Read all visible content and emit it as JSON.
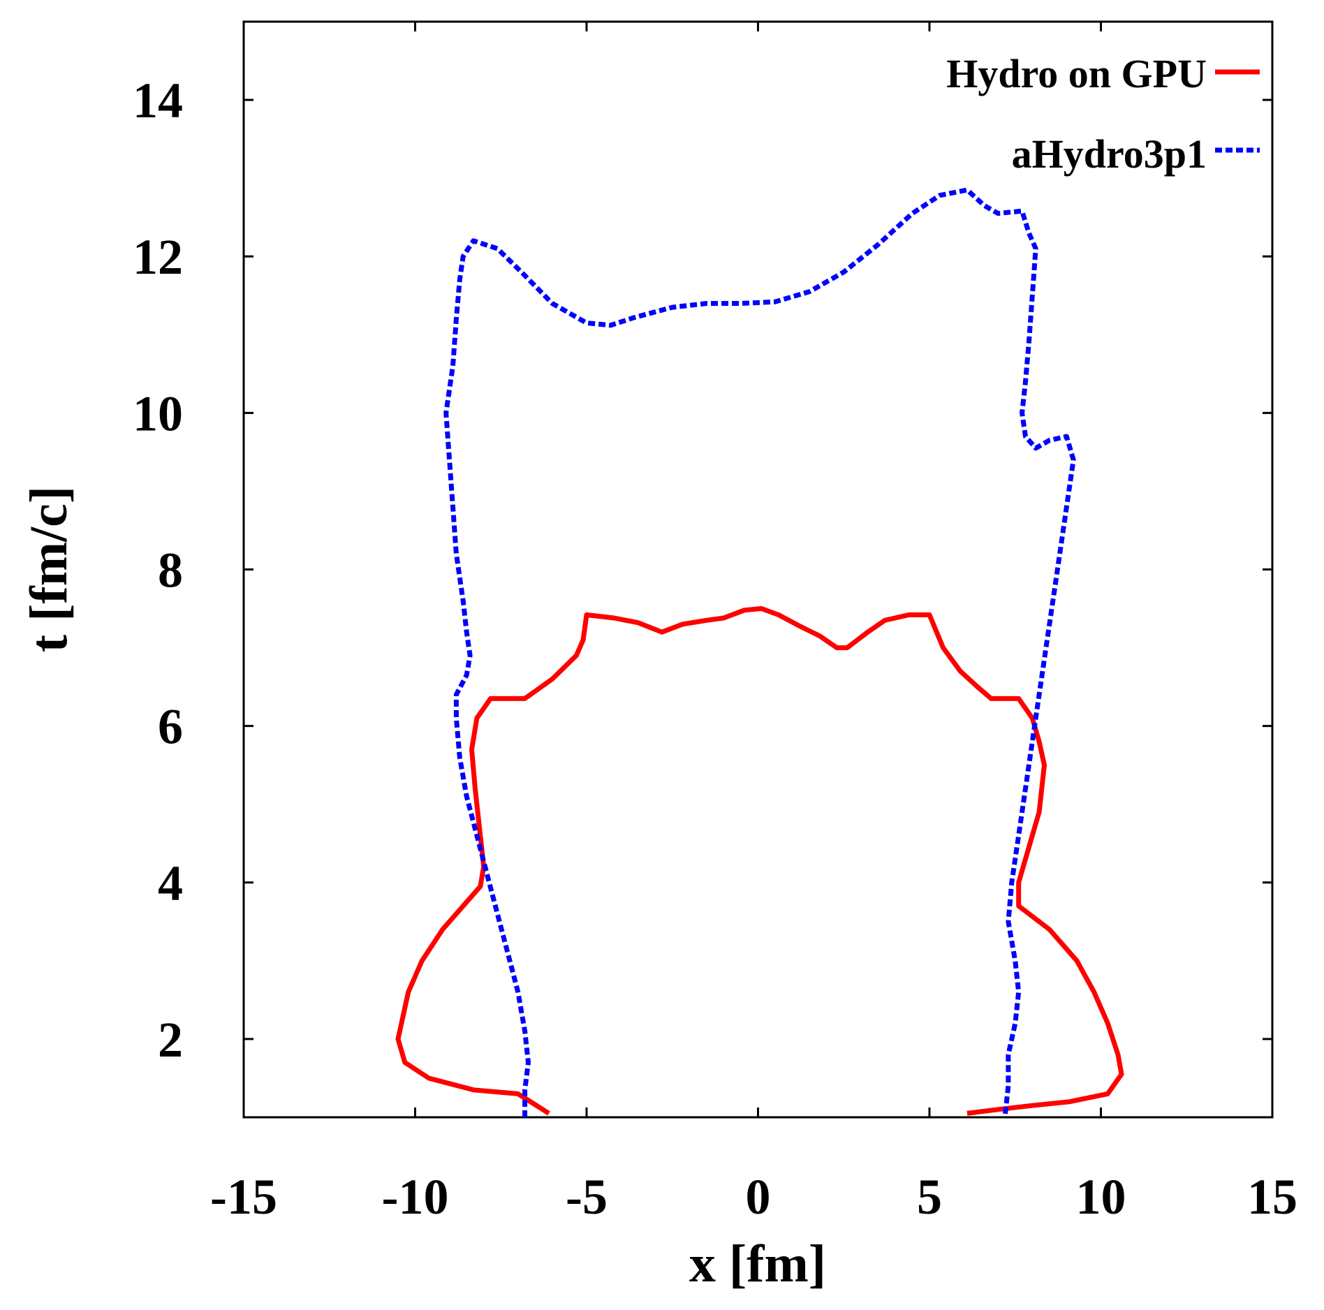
{
  "chart_data": {
    "type": "line",
    "title": "",
    "xlabel": "x [fm]",
    "ylabel": "t [fm/c]",
    "xlim": [
      -15,
      15
    ],
    "ylim": [
      1,
      15
    ],
    "xticks": [
      -15,
      -10,
      -5,
      0,
      5,
      10,
      15
    ],
    "yticks": [
      2,
      4,
      6,
      8,
      10,
      12,
      14
    ],
    "xtick_labels": [
      "-15",
      "-10",
      "-5",
      "0",
      "5",
      "10",
      "15"
    ],
    "ytick_labels": [
      "2",
      "4",
      "6",
      "8",
      "10",
      "12",
      "14"
    ],
    "grid": false,
    "legend_position": "top-right",
    "series": [
      {
        "name": "Hydro on GPU",
        "color": "#ff0000",
        "style": "solid",
        "points": [
          [
            -6.1,
            1.05
          ],
          [
            -7.0,
            1.3
          ],
          [
            -8.3,
            1.35
          ],
          [
            -9.6,
            1.5
          ],
          [
            -10.3,
            1.7
          ],
          [
            -10.5,
            2.0
          ],
          [
            -10.2,
            2.6
          ],
          [
            -9.8,
            3.0
          ],
          [
            -9.2,
            3.4
          ],
          [
            -8.6,
            3.7
          ],
          [
            -8.1,
            3.95
          ],
          [
            -8.0,
            4.2
          ],
          [
            -8.1,
            4.6
          ],
          [
            -8.25,
            5.2
          ],
          [
            -8.35,
            5.7
          ],
          [
            -8.2,
            6.1
          ],
          [
            -7.8,
            6.35
          ],
          [
            -6.8,
            6.35
          ],
          [
            -6.0,
            6.6
          ],
          [
            -5.3,
            6.9
          ],
          [
            -5.1,
            7.1
          ],
          [
            -5.0,
            7.42
          ],
          [
            -4.2,
            7.38
          ],
          [
            -3.5,
            7.32
          ],
          [
            -2.8,
            7.2
          ],
          [
            -2.2,
            7.3
          ],
          [
            -1.5,
            7.35
          ],
          [
            -1.0,
            7.38
          ],
          [
            -0.4,
            7.48
          ],
          [
            0.1,
            7.5
          ],
          [
            0.6,
            7.42
          ],
          [
            1.2,
            7.28
          ],
          [
            1.8,
            7.15
          ],
          [
            2.3,
            7.0
          ],
          [
            2.6,
            7.0
          ],
          [
            3.2,
            7.2
          ],
          [
            3.7,
            7.35
          ],
          [
            4.4,
            7.42
          ],
          [
            5.0,
            7.42
          ],
          [
            5.4,
            7.0
          ],
          [
            5.9,
            6.7
          ],
          [
            6.4,
            6.5
          ],
          [
            6.8,
            6.35
          ],
          [
            7.6,
            6.35
          ],
          [
            8.0,
            6.1
          ],
          [
            8.2,
            5.8
          ],
          [
            8.35,
            5.5
          ],
          [
            8.2,
            4.9
          ],
          [
            7.8,
            4.3
          ],
          [
            7.6,
            4.0
          ],
          [
            7.6,
            3.7
          ],
          [
            8.5,
            3.4
          ],
          [
            9.3,
            3.0
          ],
          [
            9.8,
            2.6
          ],
          [
            10.2,
            2.2
          ],
          [
            10.5,
            1.8
          ],
          [
            10.6,
            1.55
          ],
          [
            10.2,
            1.3
          ],
          [
            9.1,
            1.2
          ],
          [
            8.0,
            1.15
          ],
          [
            7.0,
            1.1
          ],
          [
            6.1,
            1.05
          ]
        ]
      },
      {
        "name": "aHydro3p1",
        "color": "#0000ff",
        "style": "dashed",
        "points": [
          [
            -6.8,
            1.0
          ],
          [
            -6.8,
            1.35
          ],
          [
            -6.7,
            1.7
          ],
          [
            -6.8,
            2.1
          ],
          [
            -7.0,
            2.6
          ],
          [
            -7.3,
            3.1
          ],
          [
            -7.6,
            3.6
          ],
          [
            -7.9,
            4.1
          ],
          [
            -8.2,
            4.6
          ],
          [
            -8.5,
            5.1
          ],
          [
            -8.7,
            5.6
          ],
          [
            -8.8,
            6.1
          ],
          [
            -8.8,
            6.4
          ],
          [
            -8.5,
            6.65
          ],
          [
            -8.4,
            6.9
          ],
          [
            -8.5,
            7.2
          ],
          [
            -8.6,
            7.6
          ],
          [
            -8.8,
            8.2
          ],
          [
            -8.9,
            8.8
          ],
          [
            -9.0,
            9.4
          ],
          [
            -9.1,
            10.0
          ],
          [
            -8.9,
            10.6
          ],
          [
            -8.8,
            11.2
          ],
          [
            -8.7,
            11.7
          ],
          [
            -8.6,
            12.0
          ],
          [
            -8.3,
            12.2
          ],
          [
            -7.6,
            12.1
          ],
          [
            -6.9,
            11.8
          ],
          [
            -6.0,
            11.4
          ],
          [
            -5.0,
            11.15
          ],
          [
            -4.3,
            11.12
          ],
          [
            -3.6,
            11.22
          ],
          [
            -2.5,
            11.35
          ],
          [
            -1.5,
            11.4
          ],
          [
            -0.5,
            11.4
          ],
          [
            0.5,
            11.42
          ],
          [
            1.5,
            11.55
          ],
          [
            2.5,
            11.8
          ],
          [
            3.5,
            12.15
          ],
          [
            4.5,
            12.55
          ],
          [
            5.3,
            12.78
          ],
          [
            6.1,
            12.85
          ],
          [
            6.6,
            12.65
          ],
          [
            7.0,
            12.55
          ],
          [
            7.7,
            12.58
          ],
          [
            7.9,
            12.3
          ],
          [
            8.1,
            12.1
          ],
          [
            8.0,
            11.5
          ],
          [
            7.9,
            10.9
          ],
          [
            7.8,
            10.4
          ],
          [
            7.7,
            10.0
          ],
          [
            7.8,
            9.7
          ],
          [
            8.1,
            9.55
          ],
          [
            8.5,
            9.65
          ],
          [
            9.0,
            9.7
          ],
          [
            9.2,
            9.4
          ],
          [
            9.0,
            8.8
          ],
          [
            8.8,
            8.2
          ],
          [
            8.6,
            7.6
          ],
          [
            8.4,
            7.0
          ],
          [
            8.2,
            6.4
          ],
          [
            8.0,
            5.8
          ],
          [
            7.8,
            5.2
          ],
          [
            7.6,
            4.6
          ],
          [
            7.4,
            4.0
          ],
          [
            7.3,
            3.5
          ],
          [
            7.5,
            3.0
          ],
          [
            7.6,
            2.6
          ],
          [
            7.5,
            2.2
          ],
          [
            7.3,
            1.8
          ],
          [
            7.3,
            1.4
          ],
          [
            7.2,
            1.0
          ]
        ]
      }
    ]
  }
}
